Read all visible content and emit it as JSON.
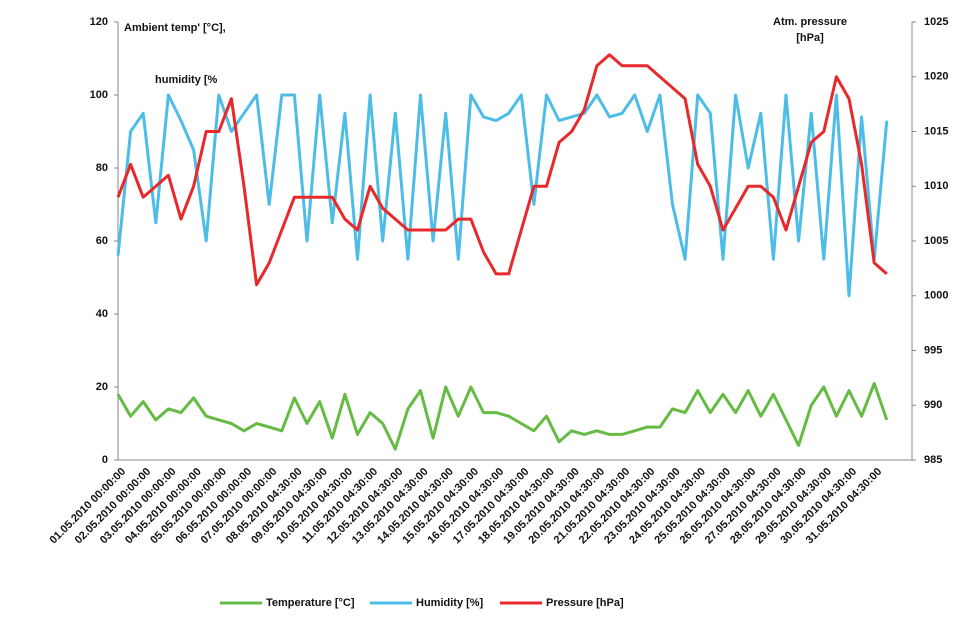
{
  "chart_data": {
    "type": "line",
    "title_left": "Ambient temp' [°C],",
    "humidity_label": "humidity [%",
    "title_right": [
      "Atm. pressure",
      "[hPa]"
    ],
    "categories": [
      "01.05.2010  00:00:00",
      null,
      "02.05.2010  00:00:00",
      null,
      "03.05.2010  00:00:00",
      null,
      "04.05.2010  00:00:00",
      null,
      "05.05.2010  00:00:00",
      null,
      "06.05.2010  00:00:00",
      null,
      "07.05.2010  00:00:00",
      null,
      "08.05.2010  04:30:00",
      null,
      "09.05.2010  04:30:00",
      null,
      "10.05.2010  04:30:00",
      null,
      "11.05.2010  04:30:00",
      null,
      "12.05.2010  04:30:00",
      null,
      "13.05.2010  04:30:00",
      null,
      "14.05.2010  04:30:00",
      null,
      "15.05.2010  04:30:00",
      null,
      "16.05.2010  04:30:00",
      null,
      "17.05.2010  04:30:00",
      null,
      "18.05.2010  04:30:00",
      null,
      "19.05.2010  04:30:00",
      null,
      "20.05.2010  04:30:00",
      null,
      "21.05.2010  04:30:00",
      null,
      "22.05.2010  04:30:00",
      null,
      "23.05.2010  04:30:00",
      null,
      "24.05.2010  04:30:00",
      null,
      "25.05.2010  04:30:00",
      null,
      "26.05.2010  04:30:00",
      null,
      "27.05.2010  04:30:00",
      null,
      "28.05.2010  04:30:00",
      null,
      "29.05.2010  04:30:00",
      null,
      "30.05.2010  04:30:00",
      null,
      "31.05.2010  04:30:00",
      null
    ],
    "series": [
      {
        "name": "Temperature [°C]",
        "color": "#66bb44",
        "axis": "y",
        "values": [
          18,
          12,
          16,
          11,
          14,
          13,
          17,
          12,
          11,
          10,
          8,
          10,
          9,
          8,
          17,
          10,
          16,
          6,
          18,
          7,
          13,
          10,
          3,
          14,
          19,
          6,
          20,
          12,
          20,
          13,
          13,
          12,
          10,
          8,
          12,
          5,
          8,
          7,
          8,
          7,
          7,
          8,
          9,
          9,
          14,
          13,
          19,
          13,
          18,
          13,
          19,
          12,
          18,
          11,
          4,
          15,
          20,
          12,
          19,
          12,
          21,
          11
        ]
      },
      {
        "name": "Humidity [%]",
        "color": "#4dbde8",
        "axis": "y",
        "values": [
          56,
          90,
          95,
          65,
          100,
          93,
          85,
          60,
          100,
          90,
          95,
          100,
          70,
          100,
          100,
          60,
          100,
          65,
          95,
          55,
          100,
          60,
          95,
          55,
          100,
          60,
          95,
          55,
          100,
          94,
          93,
          95,
          100,
          70,
          100,
          93,
          94,
          95,
          100,
          94,
          95,
          100,
          90,
          100,
          70,
          55,
          100,
          95,
          55,
          100,
          80,
          95,
          55,
          100,
          60,
          95,
          55,
          100,
          45,
          94,
          55,
          93
        ]
      },
      {
        "name": "Pressure [hPa]",
        "color": "#e8292b",
        "axis": "y2",
        "values": [
          1009,
          1012,
          1009,
          1010,
          1011,
          1007,
          1010,
          1015,
          1015,
          1018,
          1010,
          1001,
          1003,
          1006,
          1009,
          1009,
          1009,
          1009,
          1007,
          1006,
          1010,
          1008,
          1007,
          1006,
          1006,
          1006,
          1006,
          1007,
          1007,
          1004,
          1002,
          1002,
          1006,
          1010,
          1010,
          1014,
          1015,
          1017,
          1021,
          1022,
          1021,
          1021,
          1021,
          1020,
          1019,
          1018,
          1012,
          1010,
          1006,
          1008,
          1010,
          1010,
          1009,
          1006,
          1010,
          1014,
          1015,
          1020,
          1018,
          1012,
          1003,
          1002
        ]
      }
    ],
    "ylim": [
      0,
      120
    ],
    "yticks": [
      0,
      20,
      40,
      60,
      80,
      100,
      120
    ],
    "y2lim": [
      985,
      1025
    ],
    "y2ticks": [
      985,
      990,
      995,
      1000,
      1005,
      1010,
      1015,
      1020,
      1025
    ],
    "grid": false
  }
}
